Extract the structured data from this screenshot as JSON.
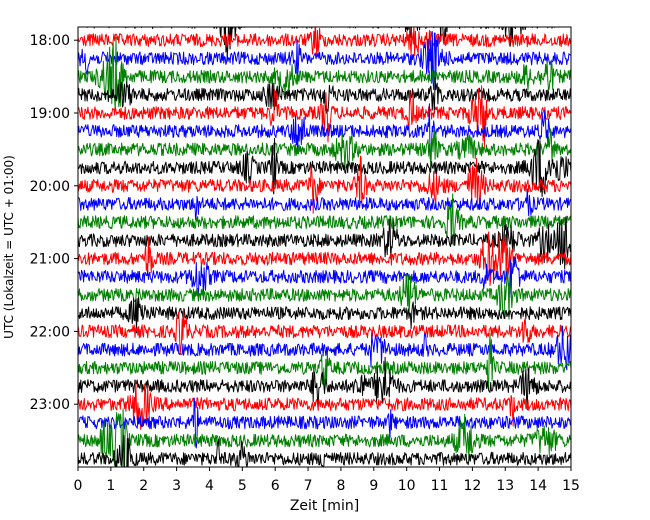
{
  "chart_data": {
    "type": "line",
    "title": "",
    "xlabel": "Zeit  [min]",
    "ylabel": "UTC (Lokalzeit = UTC + 01:00)",
    "xlim": [
      0,
      15
    ],
    "x_ticks": [
      "0",
      "1",
      "2",
      "3",
      "4",
      "5",
      "6",
      "7",
      "8",
      "9",
      "10",
      "11",
      "12",
      "13",
      "14",
      "15"
    ],
    "y_ticks": [
      "18:00",
      "19:00",
      "20:00",
      "21:00",
      "22:00",
      "23:00"
    ],
    "trace_colors": [
      "#000000",
      "#ff0000",
      "#0000ff",
      "#008000"
    ],
    "trace_start": "17:45",
    "trace_interval_minutes": 15,
    "trace_count": 25,
    "grid": false
  }
}
